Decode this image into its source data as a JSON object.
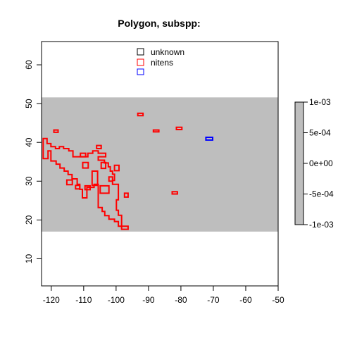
{
  "chart_data": {
    "type": "map",
    "title": "Polygon, subspp:",
    "xlabel": "",
    "ylabel": "",
    "xlim": [
      -123,
      -50
    ],
    "ylim": [
      3,
      66
    ],
    "x_ticks": [
      -120,
      -110,
      -100,
      -90,
      -80,
      -70,
      -60,
      -50
    ],
    "y_ticks": [
      10,
      20,
      30,
      40,
      50,
      60
    ],
    "x_tick_labels": [
      "-120",
      "-110",
      "-100",
      "-90",
      "-80",
      "-70",
      "-60",
      "-50"
    ],
    "y_tick_labels": [
      "10",
      "20",
      "30",
      "40",
      "50",
      "60"
    ],
    "grey_band": {
      "ymin": 17,
      "ymax": 51.6,
      "color": "#bebebe"
    },
    "legend": {
      "placement": "top-center",
      "entries": [
        {
          "label": "unknown",
          "color": "#000000"
        },
        {
          "label": "nitens",
          "color": "#ff0000"
        },
        {
          "label": "",
          "color": "#0000ff"
        }
      ]
    },
    "colorbar": {
      "ticks": [
        0.001,
        0.0005,
        0,
        -0.0005,
        -0.001
      ],
      "tick_labels": [
        "1e-03",
        "5e-04",
        "0e+00",
        "-5e-04",
        "-1e-03"
      ],
      "color": "#bebebe"
    },
    "series": [
      {
        "name": "nitens",
        "color": "#ff0000",
        "polygons": [
          [
            [
              -122.5,
              41
            ],
            [
              -121.3,
              41
            ],
            [
              -121.3,
              39.7
            ],
            [
              -120.1,
              39.7
            ],
            [
              -120.1,
              38.9
            ],
            [
              -118.7,
              38.9
            ],
            [
              -118.7,
              38.4
            ],
            [
              -117.5,
              38.4
            ],
            [
              -117.5,
              38.9
            ],
            [
              -116.2,
              38.9
            ],
            [
              -116.2,
              38.4
            ],
            [
              -114.6,
              38.4
            ],
            [
              -114.6,
              37.8
            ],
            [
              -113.3,
              37.8
            ],
            [
              -113.3,
              36.3
            ],
            [
              -108.7,
              36.3
            ],
            [
              -108.7,
              37.2
            ],
            [
              -107.2,
              37.2
            ],
            [
              -107.2,
              37.8
            ],
            [
              -105.5,
              37.8
            ],
            [
              -105.5,
              37.2
            ],
            [
              -103.2,
              37.2
            ],
            [
              -103.2,
              36.3
            ],
            [
              -105.5,
              36.3
            ],
            [
              -105.5,
              35.4
            ],
            [
              -103.6,
              35.4
            ],
            [
              -103.6,
              34.7
            ],
            [
              -102.4,
              34.7
            ],
            [
              -102.4,
              33.7
            ],
            [
              -101.8,
              33.7
            ],
            [
              -101.8,
              32.6
            ],
            [
              -101.1,
              32.6
            ],
            [
              -101.1,
              31.8
            ],
            [
              -100.5,
              31.8
            ],
            [
              -100.5,
              30.2
            ],
            [
              -101.1,
              30.2
            ],
            [
              -101.1,
              29.2
            ],
            [
              -99.3,
              29.2
            ],
            [
              -99.3,
              25.2
            ],
            [
              -99.9,
              25.2
            ],
            [
              -99.9,
              22.5
            ],
            [
              -99.3,
              22.5
            ],
            [
              -99.3,
              21.2
            ],
            [
              -98.3,
              21.2
            ],
            [
              -98.3,
              18.4
            ],
            [
              -96.3,
              18.4
            ],
            [
              -96.3,
              17.6
            ],
            [
              -98.3,
              17.6
            ],
            [
              -98.3,
              18.4
            ],
            [
              -99.3,
              18.4
            ],
            [
              -99.3,
              19.6
            ],
            [
              -100.5,
              19.6
            ],
            [
              -100.5,
              20.2
            ],
            [
              -102.2,
              20.2
            ],
            [
              -102.2,
              21.1
            ],
            [
              -103.5,
              21.1
            ],
            [
              -103.5,
              22.2
            ],
            [
              -104.3,
              22.2
            ],
            [
              -104.3,
              23.2
            ],
            [
              -105.5,
              23.2
            ],
            [
              -105.5,
              29.2
            ],
            [
              -106.8,
              29.2
            ],
            [
              -106.8,
              28.4
            ],
            [
              -109,
              28.4
            ],
            [
              -109,
              25.7
            ],
            [
              -110.4,
              25.7
            ],
            [
              -110.4,
              27.9
            ],
            [
              -111.2,
              27.9
            ],
            [
              -111.2,
              29.2
            ],
            [
              -112,
              29.2
            ],
            [
              -112,
              30.6
            ],
            [
              -113.6,
              30.6
            ],
            [
              -113.6,
              31.7
            ],
            [
              -114.8,
              31.7
            ],
            [
              -114.8,
              32.6
            ],
            [
              -116,
              32.6
            ],
            [
              -116,
              33.4
            ],
            [
              -117.3,
              33.4
            ],
            [
              -117.3,
              34.4
            ],
            [
              -118.5,
              34.4
            ],
            [
              -118.5,
              35.2
            ],
            [
              -120.1,
              35.2
            ],
            [
              -120.1,
              37.8
            ],
            [
              -121,
              37.8
            ],
            [
              -121,
              35.8
            ],
            [
              -122.5,
              35.8
            ],
            [
              -122.5,
              41
            ]
          ],
          [
            [
              -119.2,
              42.6
            ],
            [
              -117.9,
              42.6
            ],
            [
              -117.9,
              43.2
            ],
            [
              -119.2,
              43.2
            ],
            [
              -119.2,
              42.6
            ]
          ],
          [
            [
              -111,
              36.3
            ],
            [
              -109.4,
              36.3
            ],
            [
              -109.4,
              37.2
            ],
            [
              -111,
              37.2
            ],
            [
              -111,
              36.3
            ]
          ],
          [
            [
              -106,
              38.4
            ],
            [
              -104.6,
              38.4
            ],
            [
              -104.6,
              39.2
            ],
            [
              -106,
              39.2
            ],
            [
              -106,
              38.4
            ]
          ],
          [
            [
              -110.3,
              33.4
            ],
            [
              -108.6,
              33.4
            ],
            [
              -108.6,
              34.8
            ],
            [
              -110.3,
              34.8
            ],
            [
              -110.3,
              33.4
            ]
          ],
          [
            [
              -104.6,
              33.3
            ],
            [
              -103.2,
              33.3
            ],
            [
              -103.2,
              34.8
            ],
            [
              -104.6,
              34.8
            ],
            [
              -104.6,
              33.3
            ]
          ],
          [
            [
              -100.5,
              32.7
            ],
            [
              -99.1,
              32.7
            ],
            [
              -99.1,
              34.1
            ],
            [
              -100.5,
              34.1
            ],
            [
              -100.5,
              32.7
            ]
          ],
          [
            [
              -107.4,
              28.9
            ],
            [
              -105.7,
              28.9
            ],
            [
              -105.7,
              32.6
            ],
            [
              -107.4,
              32.6
            ],
            [
              -107.4,
              28.9
            ]
          ],
          [
            [
              -115.2,
              29.1
            ],
            [
              -113.5,
              29.1
            ],
            [
              -113.5,
              30.3
            ],
            [
              -115.2,
              30.3
            ],
            [
              -115.2,
              29.1
            ]
          ],
          [
            [
              -112.5,
              28
            ],
            [
              -111.2,
              28
            ],
            [
              -111.2,
              28.9
            ],
            [
              -112.5,
              28.9
            ],
            [
              -112.5,
              28
            ]
          ],
          [
            [
              -109.6,
              27.8
            ],
            [
              -108,
              27.8
            ],
            [
              -108,
              28.8
            ],
            [
              -109.6,
              28.8
            ],
            [
              -109.6,
              27.8
            ]
          ],
          [
            [
              -104.9,
              26.9
            ],
            [
              -102.2,
              26.9
            ],
            [
              -102.2,
              28.8
            ],
            [
              -104.9,
              28.8
            ],
            [
              -104.9,
              26.9
            ]
          ],
          [
            [
              -102.2,
              30
            ],
            [
              -101.1,
              30
            ],
            [
              -101.1,
              31.1
            ],
            [
              -102.2,
              31.1
            ],
            [
              -102.2,
              30
            ]
          ],
          [
            [
              -97.4,
              25.9
            ],
            [
              -96.3,
              25.9
            ],
            [
              -96.3,
              26.9
            ],
            [
              -97.4,
              26.9
            ],
            [
              -97.4,
              25.9
            ]
          ],
          [
            [
              -93.3,
              46.9
            ],
            [
              -91.7,
              46.9
            ],
            [
              -91.7,
              47.5
            ],
            [
              -93.3,
              47.5
            ],
            [
              -93.3,
              46.9
            ]
          ],
          [
            [
              -88.5,
              42.7
            ],
            [
              -86.8,
              42.7
            ],
            [
              -86.8,
              43.2
            ],
            [
              -88.5,
              43.2
            ],
            [
              -88.5,
              42.7
            ]
          ],
          [
            [
              -81.4,
              43.3
            ],
            [
              -79.7,
              43.3
            ],
            [
              -79.7,
              43.9
            ],
            [
              -81.4,
              43.9
            ],
            [
              -81.4,
              43.3
            ]
          ],
          [
            [
              -82.7,
              26.7
            ],
            [
              -81.1,
              26.7
            ],
            [
              -81.1,
              27.3
            ],
            [
              -82.7,
              27.3
            ],
            [
              -82.7,
              26.7
            ]
          ]
        ]
      },
      {
        "name": "",
        "color": "#0000ff",
        "polygons": [
          [
            [
              -72.3,
              40.6
            ],
            [
              -70.2,
              40.6
            ],
            [
              -70.2,
              41.3
            ],
            [
              -72.3,
              41.3
            ],
            [
              -72.3,
              40.6
            ]
          ]
        ]
      }
    ]
  }
}
